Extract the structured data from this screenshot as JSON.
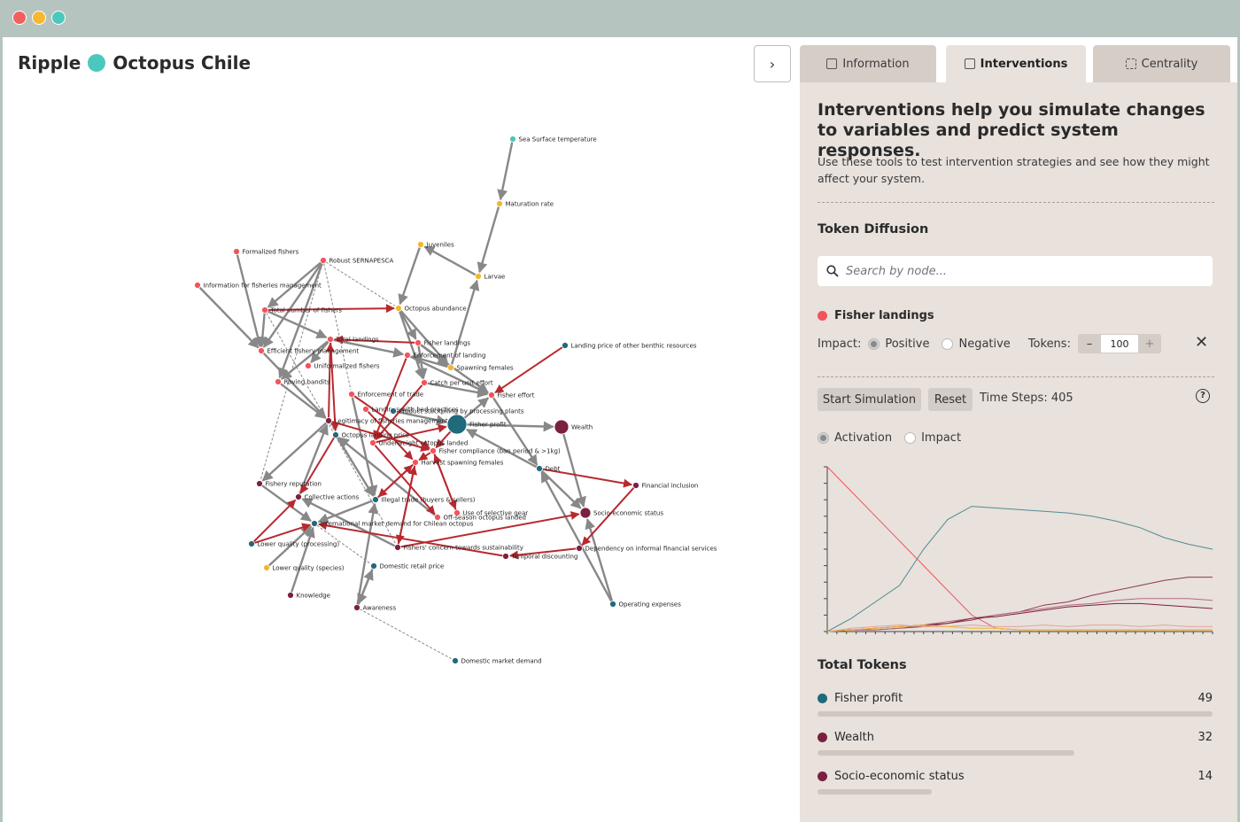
{
  "window": {
    "controls": [
      {
        "name": "close-window-button",
        "color": "#f25f5c"
      },
      {
        "name": "minimize-window-button",
        "color": "#f5b82e"
      },
      {
        "name": "maximize-window-button",
        "color": "#4cc7be"
      }
    ]
  },
  "app": {
    "brand": "Ripple",
    "logo_color": "#4cc7be",
    "project": "Octopus Chile",
    "collapse_icon": "chevron-right-icon"
  },
  "graph": {
    "colors": {
      "red": "#f2545b",
      "maroon": "#7b2040",
      "yellow": "#f1b82c",
      "teal": "#1f6a7b",
      "cyan": "#4cc7be",
      "edge": "#888888",
      "edge_active": "#b8292f"
    },
    "nodes": [
      {
        "id": "sst",
        "label": "Sea Surface temperature",
        "color": "cyan"
      },
      {
        "id": "maturation",
        "label": "Maturation rate",
        "color": "yellow"
      },
      {
        "id": "juveniles",
        "label": "Juveniles",
        "color": "yellow"
      },
      {
        "id": "larvae",
        "label": "Larvae",
        "color": "yellow"
      },
      {
        "id": "formalized",
        "label": "Formalized fishers",
        "color": "red"
      },
      {
        "id": "sernapesca",
        "label": "Robust SERNAPESCA",
        "color": "red"
      },
      {
        "id": "info",
        "label": "Information for fisheries management",
        "color": "red"
      },
      {
        "id": "totalfishers",
        "label": "Total number of fishers",
        "color": "red"
      },
      {
        "id": "abundance",
        "label": "Octopus abundance",
        "color": "yellow"
      },
      {
        "id": "totallandings",
        "label": "Total landings",
        "color": "red"
      },
      {
        "id": "fisherlandings",
        "label": "Fisher landings",
        "color": "red"
      },
      {
        "id": "efficient",
        "label": "Efficient fishery management",
        "color": "red"
      },
      {
        "id": "enforcementlanding",
        "label": "Enforcement of landing",
        "color": "red"
      },
      {
        "id": "informalized",
        "label": "Uniformalized fishers",
        "color": "red"
      },
      {
        "id": "spawning",
        "label": "Spawning females",
        "color": "yellow"
      },
      {
        "id": "benthic",
        "label": "Landing price of other benthic resources",
        "color": "teal"
      },
      {
        "id": "roving",
        "label": "Roving bandits",
        "color": "red"
      },
      {
        "id": "cpue",
        "label": "Catch per unit effort",
        "color": "red"
      },
      {
        "id": "enforcementtrade",
        "label": "Enforcement of trade",
        "color": "red"
      },
      {
        "id": "fishereffort",
        "label": "Fisher effort",
        "color": "red"
      },
      {
        "id": "badpractices",
        "label": "Landings with bad practices",
        "color": "red"
      },
      {
        "id": "stockpiling",
        "label": "Product stockpiling by processing plants",
        "color": "teal"
      },
      {
        "id": "legitimacy",
        "label": "Legitimacy of fisheries management",
        "color": "maroon"
      },
      {
        "id": "fisherprofit",
        "label": "Fisher profit",
        "color": "teal"
      },
      {
        "id": "wealth",
        "label": "Wealth",
        "color": "maroon"
      },
      {
        "id": "landingprice",
        "label": "Octopus landing price",
        "color": "teal"
      },
      {
        "id": "underweight",
        "label": "Underweight octopus landed",
        "color": "red"
      },
      {
        "id": "compliance",
        "label": "Fisher compliance (ban period & >1kg)",
        "color": "red"
      },
      {
        "id": "harvest",
        "label": "Harvest spawning females",
        "color": "red"
      },
      {
        "id": "debt",
        "label": "Debt",
        "color": "teal"
      },
      {
        "id": "reputation",
        "label": "Fishery reputation",
        "color": "maroon"
      },
      {
        "id": "financial",
        "label": "Financial inclusion",
        "color": "maroon"
      },
      {
        "id": "collective",
        "label": "Collective actions",
        "color": "maroon"
      },
      {
        "id": "illegal",
        "label": "Illegal trade (buyers & sellers)",
        "color": "teal"
      },
      {
        "id": "selectivegear",
        "label": "Use of selective gear",
        "color": "red"
      },
      {
        "id": "offseason",
        "label": "Off-season octopus landed",
        "color": "red"
      },
      {
        "id": "socioeconomic",
        "label": "Socio-economic status",
        "color": "maroon"
      },
      {
        "id": "intldemand",
        "label": "International market demand for Chilean octopus",
        "color": "teal"
      },
      {
        "id": "lowerqualityproc",
        "label": "Lower quality (processing)",
        "color": "teal"
      },
      {
        "id": "concern",
        "label": "Fishers' concern towards sustainability",
        "color": "maroon"
      },
      {
        "id": "dependency",
        "label": "Dependency on informal financial services",
        "color": "maroon"
      },
      {
        "id": "temporal",
        "label": "Temporal discounting",
        "color": "maroon"
      },
      {
        "id": "lowerqualityspecies",
        "label": "Lower quality (species)",
        "color": "yellow"
      },
      {
        "id": "domesticprice",
        "label": "Domestic retail price",
        "color": "teal"
      },
      {
        "id": "knowledge",
        "label": "Knowledge",
        "color": "maroon"
      },
      {
        "id": "awareness",
        "label": "Awareness",
        "color": "maroon"
      },
      {
        "id": "opex",
        "label": "Operating expenses",
        "color": "teal"
      },
      {
        "id": "domesticdemand",
        "label": "Domestic market demand",
        "color": "teal"
      }
    ]
  },
  "tabs": [
    {
      "label": "Information",
      "icon": "table-icon",
      "active": false
    },
    {
      "label": "Interventions",
      "icon": "chart-area-icon",
      "active": true
    },
    {
      "label": "Centrality",
      "icon": "focus-icon",
      "active": false
    }
  ],
  "interventions": {
    "heading": "Interventions help you simulate changes to variables and predict system responses.",
    "description": "Use these tools to test intervention strategies and see how they might affect your system.",
    "token_diffusion_title": "Token Diffusion",
    "search_placeholder": "Search by node...",
    "selected_node": {
      "label": "Fisher landings",
      "color": "#f2545b"
    },
    "impact_label": "Impact:",
    "impact_positive": "Positive",
    "impact_negative": "Negative",
    "impact_selected": "Positive",
    "tokens_label": "Tokens:",
    "tokens_minus": "–",
    "tokens_value": "100",
    "tokens_plus": "+",
    "start_label": "Start Simulation",
    "reset_label": "Reset",
    "time_steps": "Time Steps: 405",
    "help_symbol": "?",
    "mode_activation": "Activation",
    "mode_impact": "Impact",
    "mode_selected": "Activation",
    "total_tokens_title": "Total Tokens",
    "totals": [
      {
        "label": "Fisher profit",
        "value": "49",
        "fraction": 1.0,
        "color": "#1f6a7b"
      },
      {
        "label": "Wealth",
        "value": "32",
        "fraction": 0.65,
        "color": "#7b2040"
      },
      {
        "label": "Socio-economic status",
        "value": "14",
        "fraction": 0.29,
        "color": "#7b2040"
      }
    ]
  },
  "chart_data": {
    "type": "line",
    "x_range": [
      0,
      405
    ],
    "series": [
      {
        "color": "#f2545b",
        "values": [
          100,
          85,
          70,
          55,
          40,
          25,
          10,
          2,
          1,
          1,
          1,
          1,
          1,
          1,
          1,
          1,
          1
        ]
      },
      {
        "color": "#4f8c94",
        "values": [
          0,
          8,
          18,
          28,
          50,
          68,
          76,
          75,
          74,
          73,
          72,
          70,
          67,
          63,
          57,
          53,
          50
        ]
      },
      {
        "color": "#8d3a4c",
        "values": [
          0,
          1,
          1,
          2,
          3,
          5,
          7,
          10,
          12,
          16,
          18,
          22,
          25,
          28,
          31,
          33,
          33
        ]
      },
      {
        "color": "#b56a7a",
        "values": [
          0,
          1,
          1,
          2,
          4,
          6,
          8,
          10,
          12,
          14,
          16,
          17,
          19,
          20,
          20,
          20,
          19
        ]
      },
      {
        "color": "#7b2040",
        "values": [
          0,
          1,
          2,
          3,
          4,
          5,
          8,
          9,
          11,
          13,
          15,
          16,
          17,
          17,
          16,
          15,
          14
        ]
      },
      {
        "color": "#e0a4a4",
        "values": [
          0,
          2,
          3,
          4,
          3,
          3,
          4,
          3,
          3,
          4,
          3,
          4,
          4,
          3,
          4,
          3,
          3
        ]
      },
      {
        "color": "#f1b82c",
        "values": [
          0,
          1,
          2,
          3,
          4,
          3,
          2,
          2,
          1,
          1,
          1,
          1,
          1,
          1,
          1,
          1,
          1
        ]
      }
    ]
  }
}
